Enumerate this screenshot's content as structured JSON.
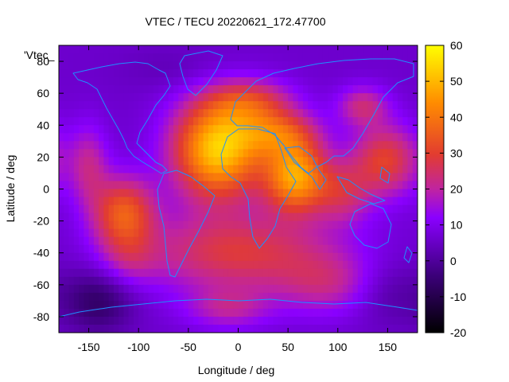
{
  "chart_data": {
    "type": "heatmap",
    "title": "VTEC / TECU 20220621_172.47700",
    "xlabel": "Longitude / deg",
    "ylabel": "Latitude / deg",
    "plot_key": "'Vtec_",
    "xlim": [
      -180,
      180
    ],
    "ylim": [
      -90,
      90
    ],
    "x_ticks": [
      -150,
      -100,
      -50,
      0,
      50,
      100,
      150
    ],
    "y_ticks": [
      -80,
      -60,
      -40,
      -20,
      0,
      20,
      40,
      60,
      80
    ],
    "colorbar": {
      "range": [
        -20,
        60
      ],
      "ticks": [
        -20,
        -10,
        0,
        10,
        20,
        30,
        40,
        50,
        60
      ],
      "palette": [
        "#000000",
        "#7a00ff",
        "#c0209a",
        "#e04a20",
        "#ff9800",
        "#ffff00"
      ]
    },
    "background_value": 6,
    "blobs": [
      {
        "lon": -20,
        "lat": 25,
        "sx": 32,
        "sy": 22,
        "amp": 47
      },
      {
        "lon": 58,
        "lat": 8,
        "sx": 22,
        "sy": 16,
        "amp": 40
      },
      {
        "lon": 40,
        "lat": 35,
        "sx": 28,
        "sy": 10,
        "amp": 22
      },
      {
        "lon": 15,
        "lat": 55,
        "sx": 30,
        "sy": 10,
        "amp": 18
      },
      {
        "lon": 125,
        "lat": 52,
        "sx": 18,
        "sy": 9,
        "amp": 16
      },
      {
        "lon": -115,
        "lat": -15,
        "sx": 22,
        "sy": 16,
        "amp": 28
      },
      {
        "lon": -150,
        "lat": 15,
        "sx": 14,
        "sy": 18,
        "amp": 14
      },
      {
        "lon": 148,
        "lat": 18,
        "sx": 24,
        "sy": 16,
        "amp": 24
      },
      {
        "lon": 105,
        "lat": -2,
        "sx": 20,
        "sy": 14,
        "amp": 16
      },
      {
        "lon": 0,
        "lat": -40,
        "sx": 70,
        "sy": 18,
        "amp": 22
      },
      {
        "lon": 90,
        "lat": -60,
        "sx": 35,
        "sy": 14,
        "amp": 12
      },
      {
        "lon": -10,
        "lat": -75,
        "sx": 30,
        "sy": 9,
        "amp": 12
      },
      {
        "lon": -110,
        "lat": -45,
        "sx": 20,
        "sy": 12,
        "amp": 8
      }
    ],
    "dark_spots": [
      {
        "lon": -140,
        "lat": -70,
        "sx": 25,
        "sy": 14,
        "amp": -13
      },
      {
        "lon": 150,
        "lat": -65,
        "sx": 25,
        "sy": 14,
        "amp": -6
      },
      {
        "lon": -60,
        "lat": 75,
        "sx": 40,
        "sy": 10,
        "amp": -3
      }
    ]
  }
}
